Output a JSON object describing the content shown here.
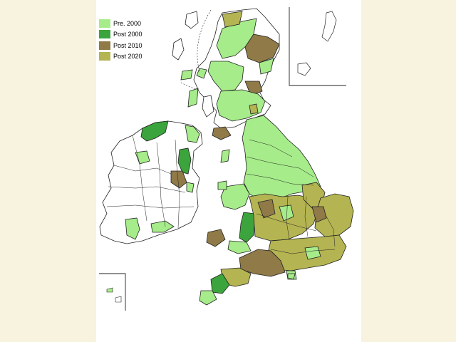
{
  "legend": {
    "items": [
      {
        "label": "Pre.  2000",
        "color": "#a6ec8a"
      },
      {
        "label": "Post 2000",
        "color": "#3ca43c"
      },
      {
        "label": "Post 2010",
        "color": "#8f7a48"
      },
      {
        "label": "Post 2020",
        "color": "#b4b452"
      }
    ]
  },
  "colors": {
    "background": "#f7f3df",
    "map_canvas": "#ffffff",
    "boundary": "#222222",
    "unshaded": "#ffffff"
  }
}
